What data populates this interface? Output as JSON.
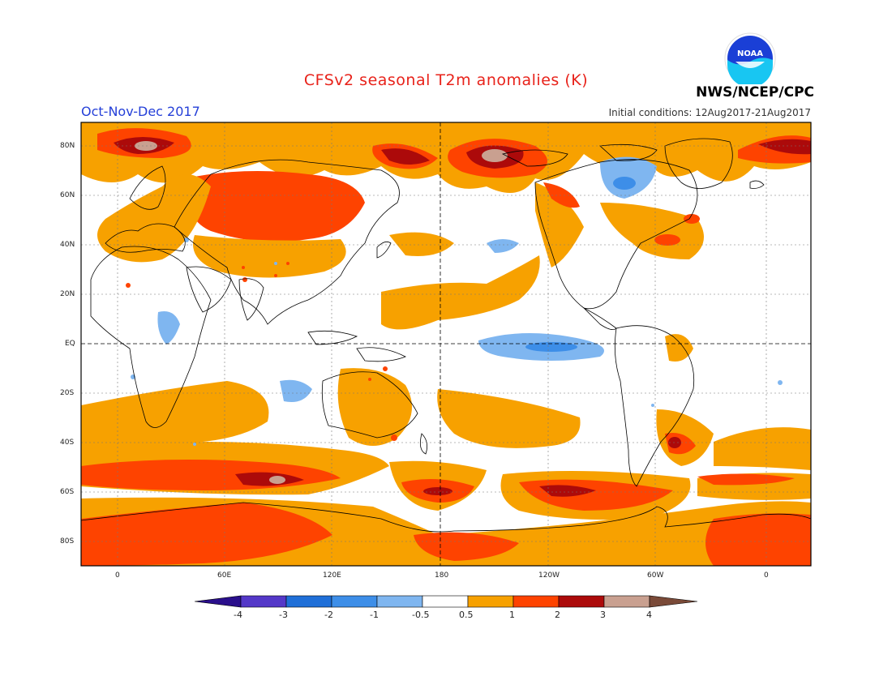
{
  "title": "CFSv2 seasonal T2m anomalies (K)",
  "period": "Oct-Nov-Dec 2017",
  "initial_conditions": "Initial conditions: 12Aug2017-21Aug2017",
  "agency": "NWS/NCEP/CPC",
  "logo": {
    "text": "NOAA",
    "icon": "noaa-logo"
  },
  "map": {
    "projection": "cylindrical equidistant",
    "center_longitude": 180,
    "longitude_range": [
      -20,
      380
    ],
    "latitude_range": [
      -90,
      90
    ],
    "grid": "dotted, every 20 degrees",
    "lat_labels": [
      "80N",
      "60N",
      "40N",
      "20N",
      "EQ",
      "20S",
      "40S",
      "60S",
      "80S"
    ],
    "lon_labels": [
      "0",
      "60E",
      "120E",
      "180",
      "120W",
      "60W",
      "0"
    ]
  },
  "colorbar": {
    "levels": [
      "-4",
      "-3",
      "-2",
      "-1",
      "-0.5",
      "0.5",
      "1",
      "2",
      "3",
      "4"
    ],
    "colors": [
      "#2a0f8c",
      "#5438c8",
      "#1f6fd8",
      "#3d8ee8",
      "#7fb6f0",
      "#ffffff",
      "#f7a100",
      "#fe4300",
      "#ac0a0a",
      "#c9a090",
      "#7a4a38"
    ]
  }
}
